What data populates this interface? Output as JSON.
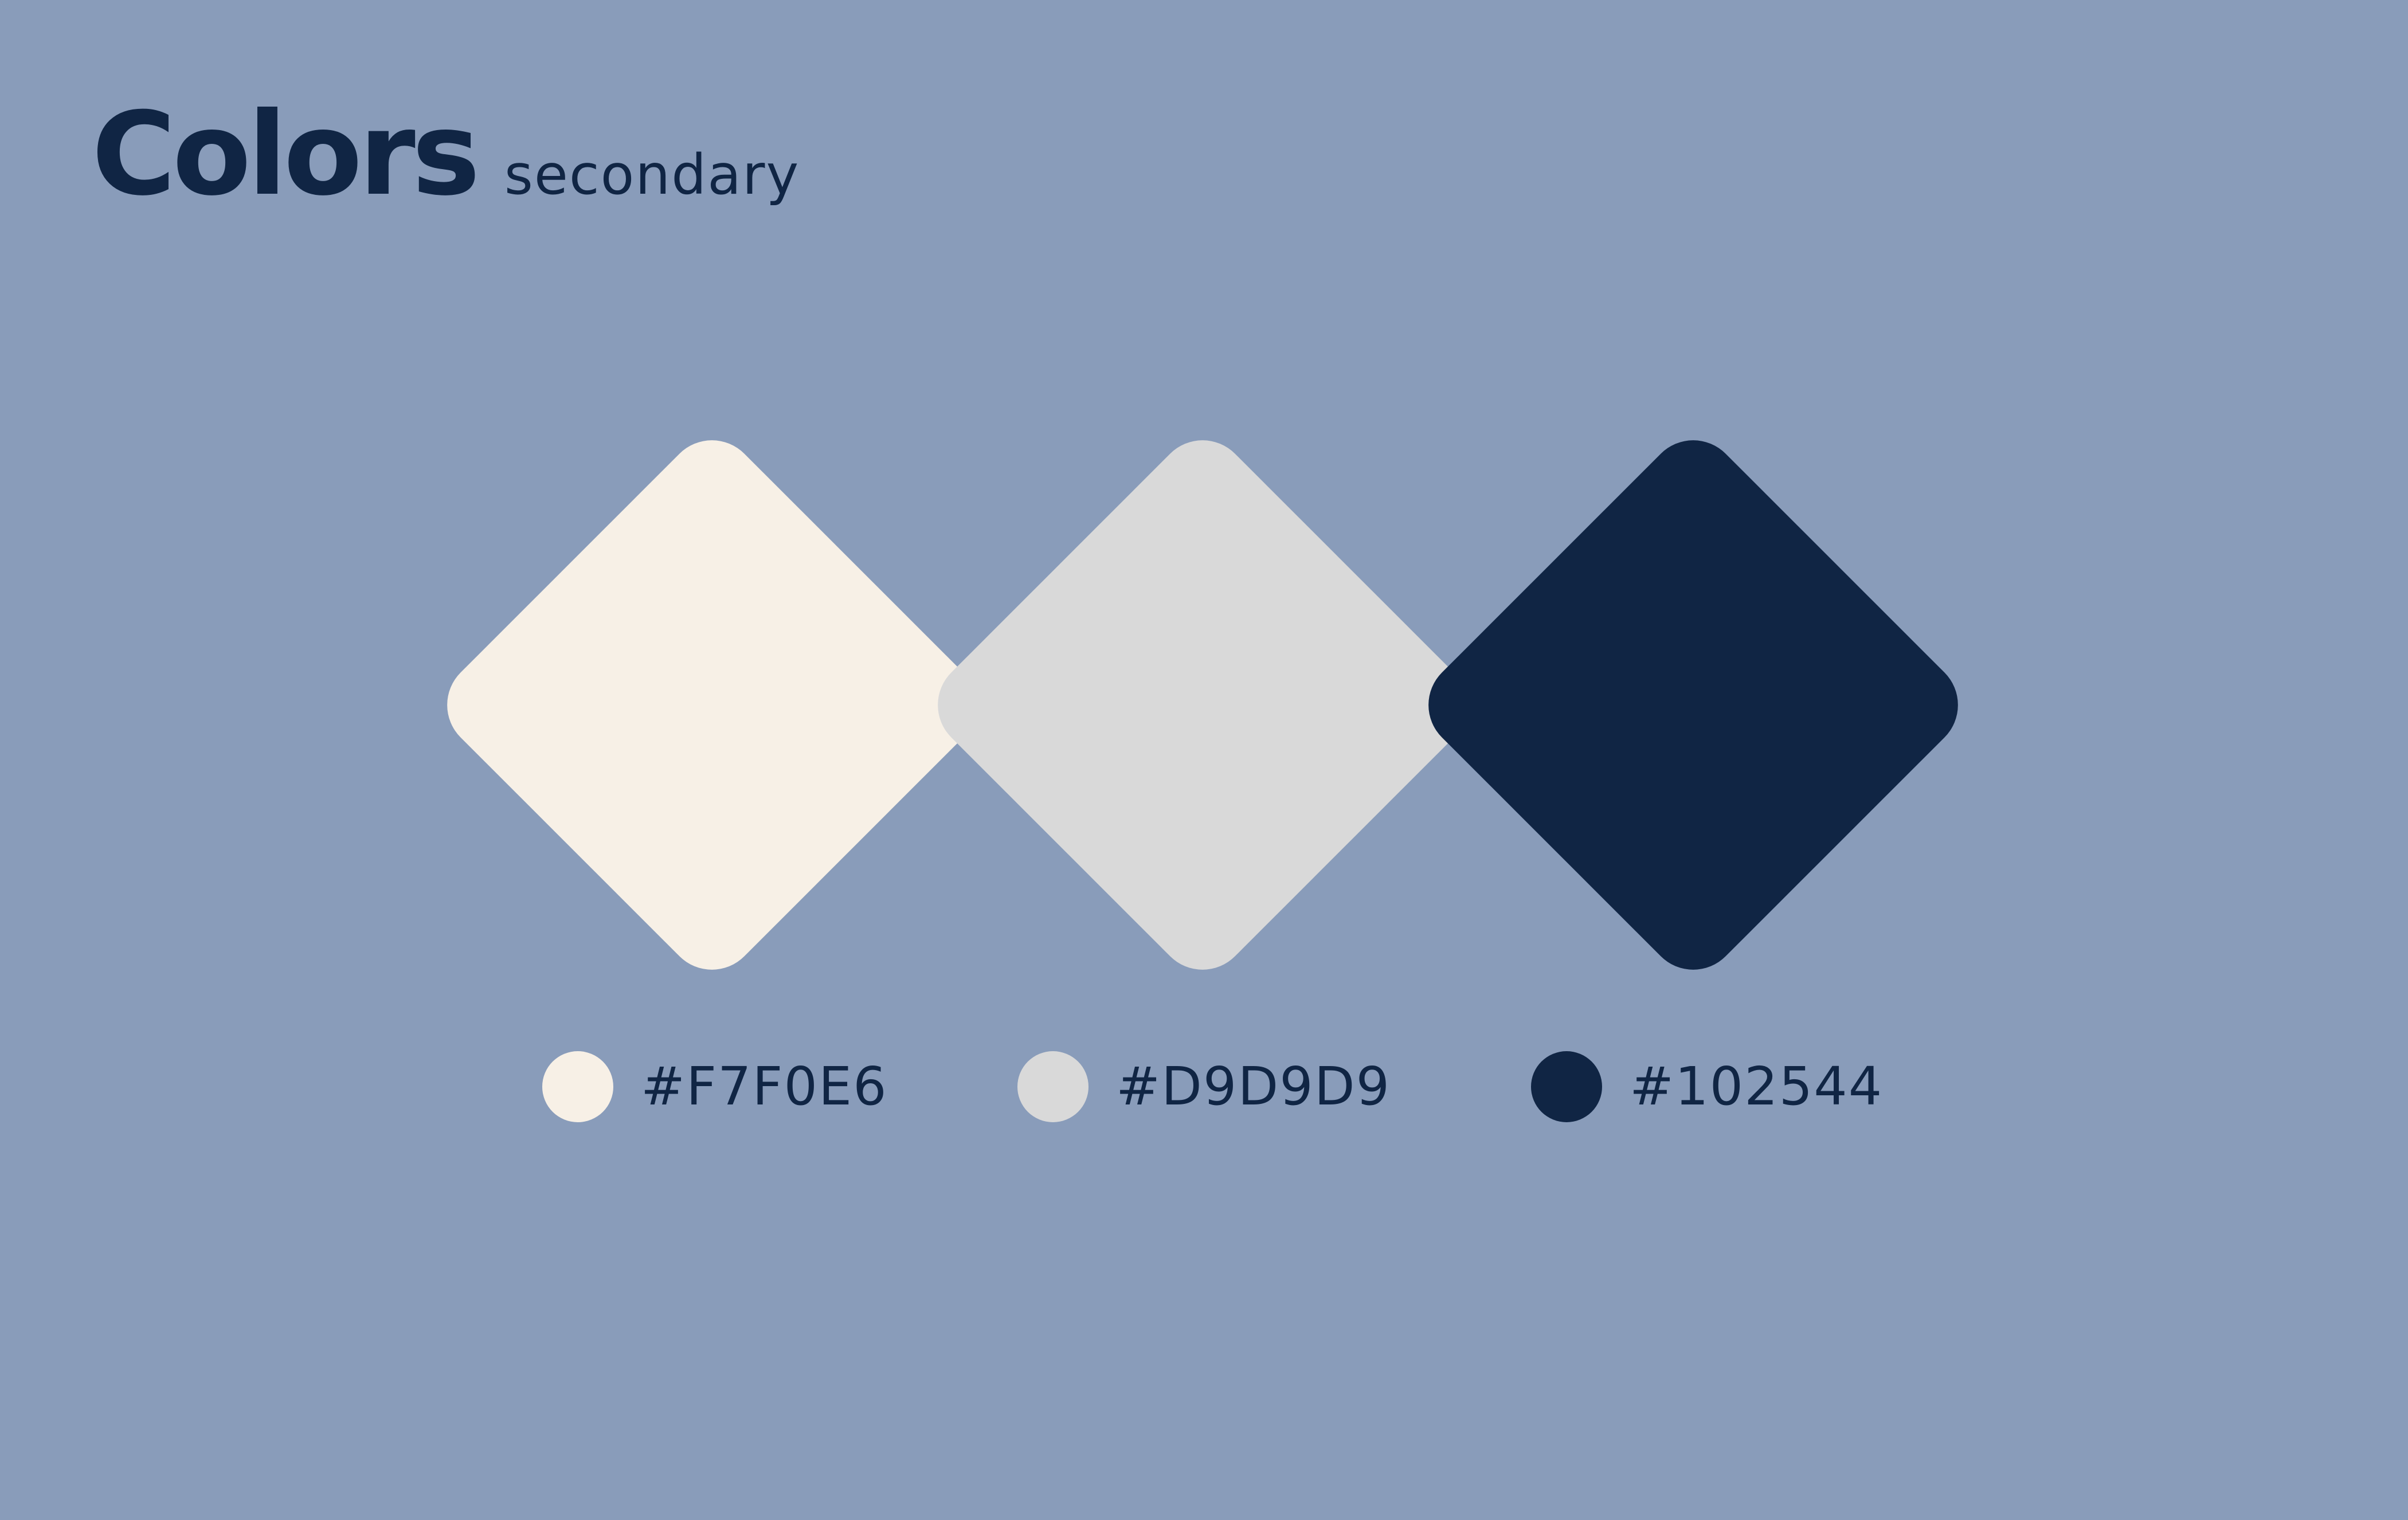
{
  "header": {
    "title": "Colors",
    "subtitle": "secondary"
  },
  "background_color": "#899CBA",
  "swatches": [
    {
      "color": "#F7F0E6",
      "label": "#F7F0E6"
    },
    {
      "color": "#D9D9D9",
      "label": "#D9D9D9"
    },
    {
      "color": "#102544",
      "label": "#102544"
    }
  ]
}
